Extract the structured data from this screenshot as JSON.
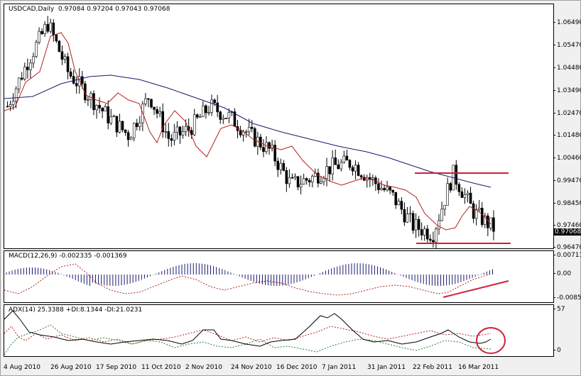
{
  "window": {
    "symbol_title": "USDCAD,Daily",
    "ohlc": "0.97084 0.97204 0.97043 0.97068"
  },
  "main_axis": {
    "ticks": [
      "1.06490",
      "1.05470",
      "1.04480",
      "1.03490",
      "1.02470",
      "1.01480",
      "1.00460",
      "0.99470",
      "0.98450",
      "0.97460",
      "0.96470"
    ],
    "current_price": "0.97068"
  },
  "macd": {
    "label": "MACD(12,26,9) -0.002335 -0.001369",
    "ticks": [
      "0.007113",
      "0.00",
      "-0.00852"
    ]
  },
  "adx": {
    "label": "ADX(14) 25.3388 +DI:8.1344 -DI:21.0231",
    "ticks": [
      "57",
      "0"
    ]
  },
  "xaxis": {
    "labels": [
      "4 Aug 2010",
      "26 Aug 2010",
      "17 Sep 2010",
      "11 Oct 2010",
      "2 Nov 2010",
      "24 Nov 2010",
      "16 Dec 2010",
      "7 Jan 2011",
      "31 Jan 2011",
      "22 Feb 2011",
      "16 Mar 2011"
    ]
  },
  "colors": {
    "ma_fast": "#b22222",
    "ma_slow": "#191970",
    "annotation": "#d0203a",
    "macd_hist": "#191970",
    "adx_line": "#000000",
    "plus_di": "#2e7d32",
    "minus_di": "#b22222"
  },
  "chart_data": [
    {
      "type": "candlestick",
      "title": "USDCAD,Daily",
      "ohlc_last": {
        "open": 0.97084,
        "high": 0.97204,
        "low": 0.97043,
        "close": 0.97068
      },
      "ylim": [
        0.9617,
        1.0705
      ],
      "x_labels": [
        "4 Aug 2010",
        "26 Aug 2010",
        "17 Sep 2010",
        "11 Oct 2010",
        "2 Nov 2010",
        "24 Nov 2010",
        "16 Dec 2010",
        "7 Jan 2011",
        "31 Jan 2011",
        "22 Feb 2011",
        "16 Mar 2011"
      ],
      "approx_close_path": [
        1.025,
        1.045,
        1.062,
        1.04,
        1.03,
        1.02,
        1.012,
        1.03,
        1.01,
        1.015,
        1.025,
        1.02,
        1.012,
        1.005,
        0.99,
        0.993,
        0.998,
        1.0,
        0.992,
        0.985,
        0.972,
        0.968,
        0.995,
        0.978,
        0.9707
      ],
      "indicators": [
        "fast MA (red)",
        "slow MA (navy)"
      ],
      "annotations": [
        "horizontal resistance ~0.9985 (22 Feb–end)",
        "horizontal support ~0.9665 (22 Feb–end)"
      ]
    },
    {
      "type": "bar",
      "title": "MACD(12,26,9)",
      "values_last": {
        "macd": -0.002335,
        "signal": -0.001369
      },
      "ylim": [
        -0.00852,
        0.007113
      ],
      "annotations": [
        "rising red trendline under MACD lows (bullish divergence)"
      ]
    },
    {
      "type": "line",
      "title": "ADX(14)",
      "values_last": {
        "adx": 25.3388,
        "plus_di": 8.1344,
        "minus_di": 21.0231
      },
      "ylim": [
        0,
        57
      ],
      "annotations": [
        "red circle around recent ADX turn"
      ]
    }
  ]
}
